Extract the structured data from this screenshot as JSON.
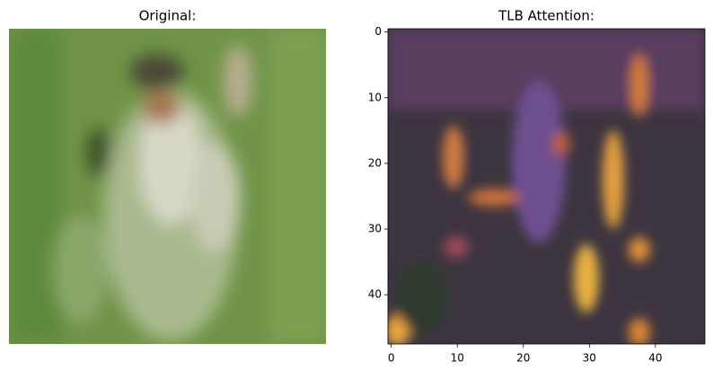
{
  "chart_data": [
    {
      "type": "image",
      "title": "Original:"
    },
    {
      "type": "image",
      "title": "TLB Attention:",
      "xlim": [
        -0.5,
        47.5
      ],
      "ylim": [
        47.5,
        -0.5
      ],
      "xticks": [
        0,
        10,
        20,
        30,
        40
      ],
      "yticks": [
        0,
        10,
        20,
        30,
        40
      ]
    }
  ]
}
